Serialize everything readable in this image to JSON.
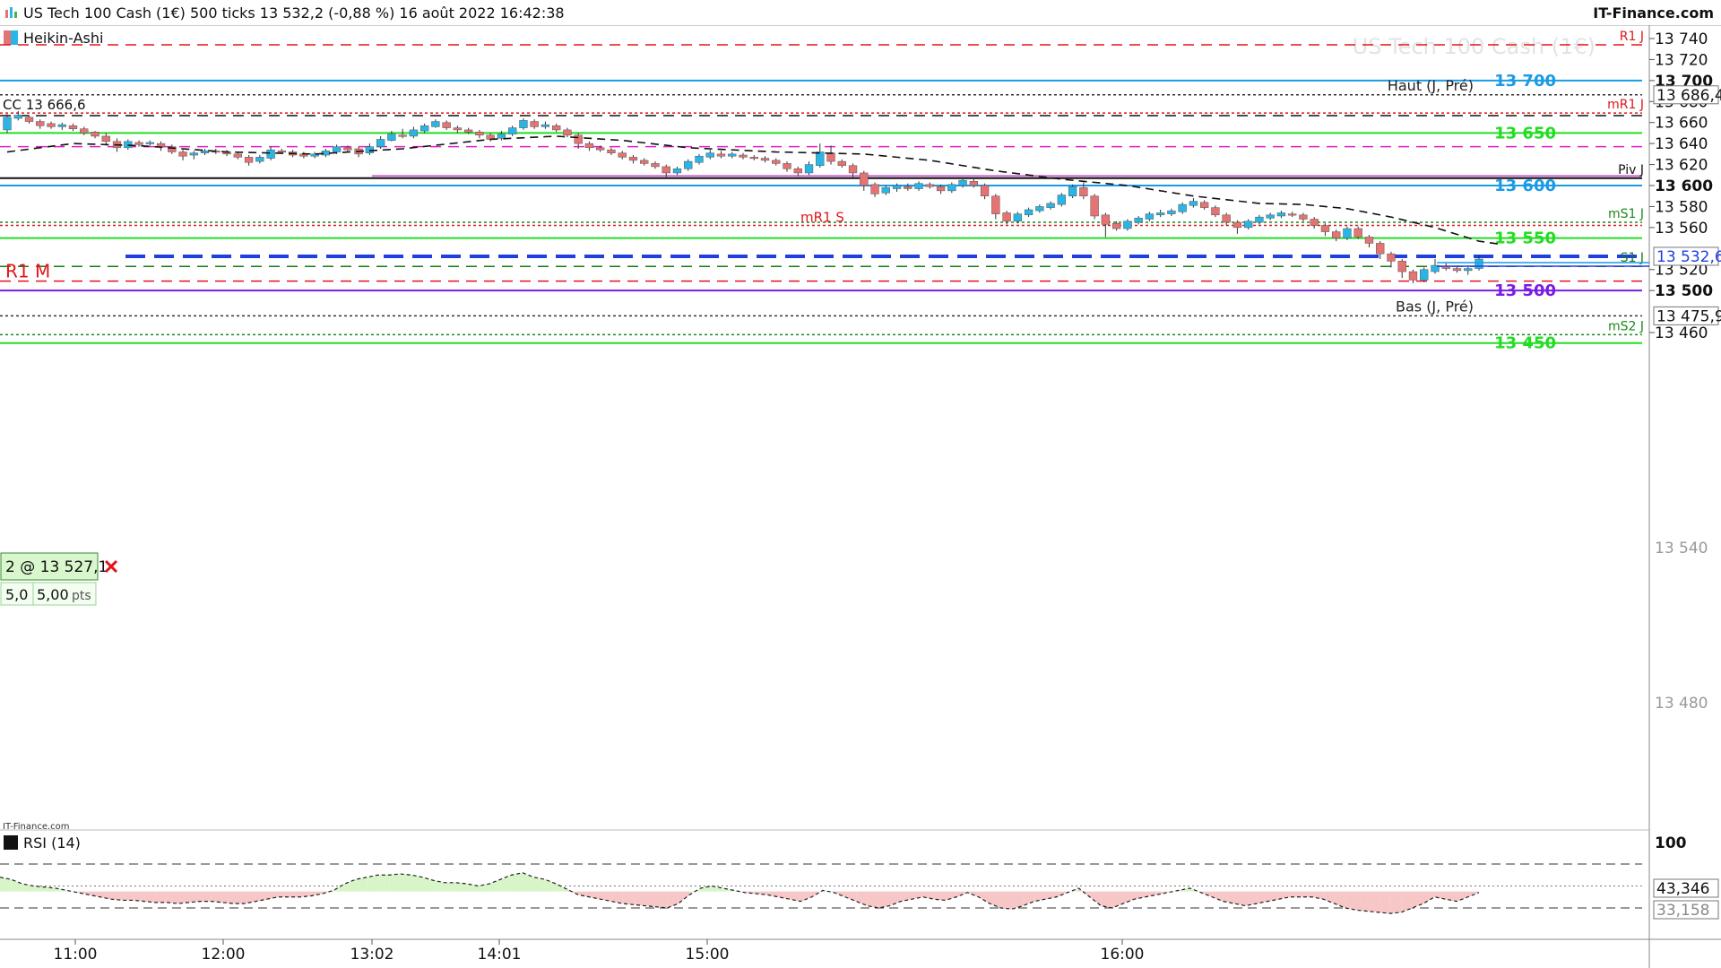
{
  "header": {
    "title": "US Tech 100 Cash (1€) 500 ticks 13 532,2 (-0,88 %) 16 août 2022 16:42:38",
    "brand": "IT-Finance.com"
  },
  "chart_style": {
    "label": "Heikin-Ashi",
    "watermark": "US Tech 100 Cash (1€)"
  },
  "colors": {
    "bull": "#29b6e6",
    "bear": "#e57373",
    "green": "#22dd22",
    "blue": "#1a9be6",
    "purple": "#7a1be6",
    "red": "#e0161b",
    "magenta": "#e020c8",
    "order": "#1f3fe0"
  },
  "icons": {
    "close": "close-icon",
    "app": "chart-app-icon"
  },
  "order": {
    "label": "2 @ 13 527,1",
    "qty": "5,0",
    "pts": "5,00",
    "pts_unit": "pts"
  },
  "chart_data": {
    "type": "candlestick",
    "price_axis": {
      "min": 13400,
      "max": 13745,
      "ticks": [
        {
          "value": 13740,
          "label": "13 740"
        },
        {
          "value": 13720,
          "label": "13 720"
        },
        {
          "value": 13700,
          "label": "13 700",
          "bold": true
        },
        {
          "value": 13680,
          "label": "13 680"
        },
        {
          "value": 13660,
          "label": "13 660"
        },
        {
          "value": 13640,
          "label": "13 640"
        },
        {
          "value": 13620,
          "label": "13 620"
        },
        {
          "value": 13600,
          "label": "13 600",
          "bold": true
        },
        {
          "value": 13580,
          "label": "13 580"
        },
        {
          "value": 13560,
          "label": "13 560"
        },
        {
          "value": 13520,
          "label": "13 520"
        },
        {
          "value": 13500,
          "label": "13 500",
          "bold": true
        },
        {
          "value": 13460,
          "label": "13 460"
        }
      ],
      "boxes": [
        {
          "value": 13686.4,
          "label": "13 686,4"
        },
        {
          "value": 13532.6,
          "label": "13 532,6",
          "color": "#1f3fe0"
        },
        {
          "value": 13475.9,
          "label": "13 475,9"
        }
      ]
    },
    "time_labels": [
      "11:00",
      "12:00",
      "13:02",
      "14:01",
      "15:00",
      "16:00"
    ],
    "levels": [
      {
        "value": 13734,
        "label": "R1 J",
        "color": "#e0161b",
        "style": "dash"
      },
      {
        "value": 13700,
        "label": "13 700",
        "color": "#1a9be6",
        "style": "solid",
        "bold": true
      },
      {
        "value": 13686.4,
        "label": "Haut (J, Pré)",
        "color": "#333333",
        "style": "dot"
      },
      {
        "value": 13669,
        "label": "mR1 J",
        "color": "#e0161b",
        "style": "dot"
      },
      {
        "value": 13666.6,
        "label": "CC 13 666,6",
        "color": "#111111",
        "style": "dash"
      },
      {
        "value": 13650,
        "label": "13 650",
        "color": "#22dd22",
        "style": "solid",
        "bold": true
      },
      {
        "value": 13637,
        "label": "",
        "color": "#e020c8",
        "style": "dash"
      },
      {
        "value": 13607,
        "label": "Piv J",
        "color": "#111111",
        "style": "solid"
      },
      {
        "value": 13600,
        "label": "13 600",
        "color": "#1a9be6",
        "style": "solid",
        "bold": true
      },
      {
        "value": 13565,
        "label": "mS1 J",
        "color": "#1a8a1a",
        "style": "dot"
      },
      {
        "value": 13562,
        "label": "mR1 S",
        "color": "#e0161b",
        "style": "dot"
      },
      {
        "value": 13550,
        "label": "13 550",
        "color": "#22dd22",
        "style": "solid",
        "bold": true
      },
      {
        "value": 13532.6,
        "label": "",
        "color": "#1f3fe0",
        "style": "bigdash"
      },
      {
        "value": 13523,
        "label": "S1 J",
        "color": "#1a7a1a",
        "style": "dash"
      },
      {
        "value": 13509,
        "label": "R1 M",
        "color": "#e0161b",
        "style": "dash"
      },
      {
        "value": 13500,
        "label": "13 500",
        "color": "#7a1be6",
        "style": "solid",
        "bold": true
      },
      {
        "value": 13475.9,
        "label": "Bas (J, Pré)",
        "color": "#333333",
        "style": "dot"
      },
      {
        "value": 13458,
        "label": "mS2 J",
        "color": "#1a8a1a",
        "style": "dot"
      },
      {
        "value": 13450,
        "label": "13 450",
        "color": "#22dd22",
        "style": "solid",
        "bold": true
      }
    ],
    "candles": [
      [
        13653,
        13665,
        13650,
        13668
      ],
      [
        13664,
        13667,
        13662,
        13671
      ],
      [
        13665,
        13661,
        13659,
        13667
      ],
      [
        13661,
        13657,
        13654,
        13663
      ],
      [
        13659,
        13656,
        13654,
        13661
      ],
      [
        13656,
        13658,
        13653,
        13660
      ],
      [
        13657,
        13654,
        13652,
        13659
      ],
      [
        13654,
        13650,
        13648,
        13656
      ],
      [
        13651,
        13647,
        13645,
        13652
      ],
      [
        13647,
        13642,
        13638,
        13650
      ],
      [
        13642,
        13636,
        13632,
        13645
      ],
      [
        13636,
        13642,
        13634,
        13644
      ],
      [
        13641,
        13639,
        13637,
        13643
      ],
      [
        13640,
        13641,
        13638,
        13643
      ],
      [
        13640,
        13637,
        13633,
        13642
      ],
      [
        13637,
        13632,
        13630,
        13639
      ],
      [
        13632,
        13628,
        13624,
        13634
      ],
      [
        13629,
        13631,
        13625,
        13633
      ],
      [
        13631,
        13633,
        13629,
        13635
      ],
      [
        13633,
        13632,
        13630,
        13635
      ],
      [
        13632,
        13630,
        13628,
        13634
      ],
      [
        13630,
        13627,
        13625,
        13632
      ],
      [
        13627,
        13622,
        13619,
        13629
      ],
      [
        13623,
        13627,
        13621,
        13629
      ],
      [
        13626,
        13634,
        13624,
        13637
      ],
      [
        13633,
        13632,
        13630,
        13635
      ],
      [
        13632,
        13629,
        13627,
        13634
      ],
      [
        13630,
        13628,
        13626,
        13632
      ],
      [
        13628,
        13630,
        13626,
        13632
      ],
      [
        13629,
        13633,
        13627,
        13635
      ],
      [
        13632,
        13637,
        13630,
        13639
      ],
      [
        13636,
        13634,
        13632,
        13638
      ],
      [
        13635,
        13630,
        13627,
        13637
      ],
      [
        13631,
        13637,
        13629,
        13640
      ],
      [
        13637,
        13644,
        13635,
        13647
      ],
      [
        13643,
        13649,
        13642,
        13652
      ],
      [
        13648,
        13647,
        13645,
        13654
      ],
      [
        13647,
        13653,
        13645,
        13656
      ],
      [
        13652,
        13657,
        13650,
        13659
      ],
      [
        13656,
        13661,
        13655,
        13663
      ],
      [
        13660,
        13655,
        13653,
        13662
      ],
      [
        13655,
        13653,
        13650,
        13657
      ],
      [
        13653,
        13651,
        13649,
        13655
      ],
      [
        13651,
        13648,
        13645,
        13653
      ],
      [
        13648,
        13644,
        13642,
        13650
      ],
      [
        13645,
        13649,
        13643,
        13652
      ],
      [
        13649,
        13655,
        13647,
        13657
      ],
      [
        13655,
        13662,
        13653,
        13664
      ],
      [
        13661,
        13656,
        13654,
        13663
      ],
      [
        13656,
        13658,
        13654,
        13661
      ],
      [
        13657,
        13653,
        13651,
        13659
      ],
      [
        13653,
        13648,
        13646,
        13655
      ],
      [
        13648,
        13640,
        13635,
        13650
      ],
      [
        13640,
        13636,
        13633,
        13642
      ],
      [
        13636,
        13634,
        13632,
        13638
      ],
      [
        13634,
        13631,
        13629,
        13636
      ],
      [
        13631,
        13627,
        13625,
        13633
      ],
      [
        13627,
        13624,
        13621,
        13629
      ],
      [
        13624,
        13621,
        13619,
        13626
      ],
      [
        13621,
        13618,
        13616,
        13623
      ],
      [
        13618,
        13612,
        13608,
        13620
      ],
      [
        13612,
        13616,
        13610,
        13618
      ],
      [
        13616,
        13623,
        13614,
        13625
      ],
      [
        13622,
        13628,
        13620,
        13630
      ],
      [
        13627,
        13631,
        13625,
        13634
      ],
      [
        13630,
        13628,
        13626,
        13633
      ],
      [
        13628,
        13630,
        13626,
        13632
      ],
      [
        13629,
        13627,
        13625,
        13631
      ],
      [
        13627,
        13626,
        13624,
        13629
      ],
      [
        13626,
        13624,
        13622,
        13628
      ],
      [
        13624,
        13621,
        13619,
        13626
      ],
      [
        13621,
        13616,
        13613,
        13623
      ],
      [
        13616,
        13612,
        13609,
        13618
      ],
      [
        13612,
        13620,
        13610,
        13623
      ],
      [
        13619,
        13632,
        13617,
        13640
      ],
      [
        13631,
        13623,
        13620,
        13638
      ],
      [
        13623,
        13619,
        13617,
        13625
      ],
      [
        13619,
        13612,
        13608,
        13621
      ],
      [
        13612,
        13600,
        13595,
        13614
      ],
      [
        13601,
        13592,
        13589,
        13603
      ],
      [
        13593,
        13598,
        13591,
        13600
      ],
      [
        13597,
        13600,
        13594,
        13602
      ],
      [
        13599,
        13597,
        13595,
        13602
      ],
      [
        13597,
        13602,
        13595,
        13604
      ],
      [
        13601,
        13599,
        13597,
        13603
      ],
      [
        13599,
        13595,
        13592,
        13601
      ],
      [
        13595,
        13601,
        13593,
        13603
      ],
      [
        13600,
        13605,
        13598,
        13607
      ],
      [
        13604,
        13600,
        13598,
        13606
      ],
      [
        13600,
        13590,
        13587,
        13602
      ],
      [
        13590,
        13573,
        13568,
        13592
      ],
      [
        13574,
        13566,
        13563,
        13576
      ],
      [
        13566,
        13573,
        13564,
        13575
      ],
      [
        13572,
        13577,
        13570,
        13579
      ],
      [
        13576,
        13580,
        13574,
        13582
      ],
      [
        13579,
        13583,
        13577,
        13585
      ],
      [
        13582,
        13591,
        13580,
        13593
      ],
      [
        13590,
        13599,
        13588,
        13601
      ],
      [
        13598,
        13590,
        13587,
        13603
      ],
      [
        13590,
        13571,
        13568,
        13592
      ],
      [
        13572,
        13563,
        13551,
        13574
      ],
      [
        13564,
        13559,
        13557,
        13566
      ],
      [
        13559,
        13566,
        13557,
        13568
      ],
      [
        13565,
        13569,
        13563,
        13571
      ],
      [
        13568,
        13573,
        13566,
        13575
      ],
      [
        13572,
        13574,
        13570,
        13577
      ],
      [
        13573,
        13576,
        13571,
        13578
      ],
      [
        13575,
        13582,
        13573,
        13584
      ],
      [
        13581,
        13585,
        13579,
        13588
      ],
      [
        13584,
        13579,
        13577,
        13586
      ],
      [
        13579,
        13572,
        13570,
        13581
      ],
      [
        13572,
        13565,
        13562,
        13574
      ],
      [
        13565,
        13560,
        13554,
        13567
      ],
      [
        13560,
        13566,
        13558,
        13568
      ],
      [
        13565,
        13570,
        13563,
        13572
      ],
      [
        13569,
        13572,
        13567,
        13574
      ],
      [
        13571,
        13574,
        13569,
        13576
      ],
      [
        13573,
        13572,
        13570,
        13575
      ],
      [
        13572,
        13568,
        13566,
        13574
      ],
      [
        13568,
        13562,
        13559,
        13570
      ],
      [
        13562,
        13556,
        13552,
        13564
      ],
      [
        13556,
        13550,
        13547,
        13558
      ],
      [
        13550,
        13559,
        13548,
        13561
      ],
      [
        13559,
        13551,
        13549,
        13561
      ],
      [
        13551,
        13545,
        13541,
        13553
      ],
      [
        13545,
        13535,
        13530,
        13547
      ],
      [
        13535,
        13528,
        13522,
        13537
      ],
      [
        13528,
        13518,
        13512,
        13530
      ],
      [
        13518,
        13510,
        13507,
        13520
      ],
      [
        13510,
        13520,
        13508,
        13522
      ],
      [
        13518,
        13524,
        13516,
        13530
      ],
      [
        13523,
        13521,
        13519,
        13526
      ],
      [
        13521,
        13519,
        13517,
        13523
      ],
      [
        13519,
        13521,
        13515,
        13523
      ],
      [
        13521,
        13530,
        13519,
        13534
      ]
    ],
    "average_line": [
      [
        0,
        13632
      ],
      [
        6,
        13640
      ],
      [
        12,
        13638
      ],
      [
        20,
        13632
      ],
      [
        28,
        13630
      ],
      [
        36,
        13635
      ],
      [
        44,
        13644
      ],
      [
        50,
        13647
      ],
      [
        56,
        13643
      ],
      [
        62,
        13636
      ],
      [
        70,
        13632
      ],
      [
        78,
        13630
      ],
      [
        84,
        13624
      ],
      [
        90,
        13614
      ],
      [
        96,
        13606
      ],
      [
        102,
        13600
      ],
      [
        108,
        13590
      ],
      [
        114,
        13583
      ],
      [
        118,
        13582
      ],
      [
        122,
        13578
      ],
      [
        126,
        13570
      ],
      [
        130,
        13560
      ],
      [
        134,
        13547
      ],
      [
        136,
        13544
      ]
    ],
    "rsi": {
      "label": "RSI (14)",
      "axis_max_label": "100",
      "value": "43,346",
      "lower": "33,158",
      "upper_level": 70,
      "mid_level": 50,
      "lower_level": 30,
      "values": [
        58,
        56,
        52,
        50,
        49,
        48,
        46,
        44,
        42,
        40,
        38,
        37,
        37,
        36,
        35,
        35,
        34,
        35,
        36,
        36,
        35,
        34,
        34,
        36,
        38,
        40,
        40,
        40,
        41,
        43,
        46,
        52,
        56,
        58,
        60,
        60,
        61,
        60,
        58,
        55,
        53,
        53,
        52,
        50,
        52,
        56,
        60,
        62,
        58,
        56,
        52,
        47,
        42,
        40,
        38,
        36,
        34,
        33,
        32,
        31,
        30,
        34,
        42,
        48,
        50,
        48,
        46,
        44,
        43,
        42,
        40,
        38,
        36,
        40,
        46,
        44,
        40,
        36,
        32,
        30,
        32,
        36,
        38,
        40,
        38,
        37,
        40,
        44,
        40,
        34,
        30,
        29,
        32,
        36,
        38,
        40,
        44,
        48,
        40,
        32,
        30,
        34,
        38,
        40,
        42,
        44,
        46,
        48,
        44,
        40,
        36,
        34,
        32,
        34,
        36,
        38,
        40,
        40,
        40,
        38,
        34,
        30,
        28,
        27,
        26,
        25,
        26,
        30,
        34,
        40,
        38,
        36,
        40,
        44
      ]
    }
  }
}
